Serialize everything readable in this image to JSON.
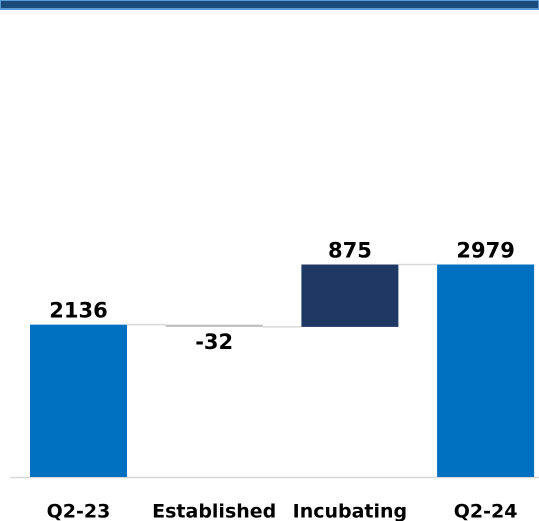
{
  "chart_data": {
    "type": "waterfall",
    "categories": [
      "Q2-23",
      "Established",
      "Incubating",
      "Q2-24"
    ],
    "values": [
      2136,
      -32,
      875,
      2979
    ],
    "totals": [
      true,
      false,
      false,
      true
    ],
    "colors": [
      "#0070c0",
      "#bfbfbf",
      "#1f3864",
      "#0070c0"
    ],
    "ylim": [
      0,
      6000
    ]
  }
}
